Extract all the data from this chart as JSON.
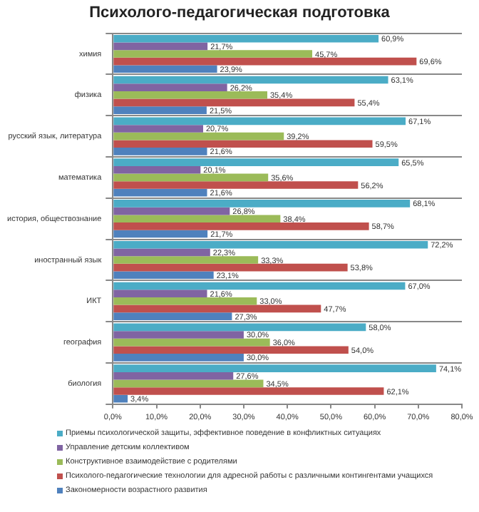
{
  "chart_data": {
    "type": "bar",
    "orientation": "horizontal",
    "title": "Психолого-педагогическая подготовка",
    "categories": [
      "химия",
      "физика",
      "русский язык, литература",
      "математика",
      "история, обществознание",
      "иностранный язык",
      "ИКТ",
      "география",
      "биология"
    ],
    "series": [
      {
        "name": "Приемы психологической защиты, эффективное поведение в конфликтных ситуациях",
        "color": "#4bacc6",
        "values": [
          60.9,
          63.1,
          67.1,
          65.5,
          68.1,
          72.2,
          67.0,
          58.0,
          74.1
        ],
        "value_labels": [
          "60,9%",
          "63,1%",
          "67,1%",
          "65,5%",
          "68,1%",
          "72,2%",
          "67,0%",
          "58,0%",
          "74,1%"
        ]
      },
      {
        "name": "Управление детским коллективом",
        "color": "#8064a2",
        "values": [
          21.7,
          26.2,
          20.7,
          20.1,
          26.8,
          22.3,
          21.6,
          30.0,
          27.6
        ],
        "value_labels": [
          "21,7%",
          "26,2%",
          "20,7%",
          "20,1%",
          "26,8%",
          "22,3%",
          "21,6%",
          "30,0%",
          "27,6%"
        ]
      },
      {
        "name": "Конструктивное взаимодействие с родителями",
        "color": "#9bbb59",
        "values": [
          45.7,
          35.4,
          39.2,
          35.6,
          38.4,
          33.3,
          33.0,
          36.0,
          34.5
        ],
        "value_labels": [
          "45,7%",
          "35,4%",
          "39,2%",
          "35,6%",
          "38,4%",
          "33,3%",
          "33,0%",
          "36,0%",
          "34,5%"
        ]
      },
      {
        "name": "Психолого-педагогические технологии для адресной работы с различными контингентами учащихся",
        "color": "#c0504d",
        "values": [
          69.6,
          55.4,
          59.5,
          56.2,
          58.7,
          53.8,
          47.7,
          54.0,
          62.1
        ],
        "value_labels": [
          "69,6%",
          "55,4%",
          "59,5%",
          "56,2%",
          "58,7%",
          "53,8%",
          "47,7%",
          "54,0%",
          "62,1%"
        ]
      },
      {
        "name": "Закономерности возрастного развития",
        "color": "#4f81bd",
        "values": [
          23.9,
          21.5,
          21.6,
          21.6,
          21.7,
          23.1,
          27.3,
          30.0,
          3.4
        ],
        "value_labels": [
          "23,9%",
          "21,5%",
          "21,6%",
          "21,6%",
          "21,7%",
          "23,1%",
          "27,3%",
          "30,0%",
          "3,4%"
        ]
      }
    ],
    "xlim": [
      0,
      80
    ],
    "xticks": [
      {
        "value": 0,
        "label": "0,0%"
      },
      {
        "value": 10,
        "label": "10,0%"
      },
      {
        "value": 20,
        "label": "20,0%"
      },
      {
        "value": 30,
        "label": "30,0%"
      },
      {
        "value": 40,
        "label": "40,0%"
      },
      {
        "value": 50,
        "label": "50,0%"
      },
      {
        "value": 60,
        "label": "60,0%"
      },
      {
        "value": 70,
        "label": "70,0%"
      },
      {
        "value": 80,
        "label": "80,0%"
      }
    ],
    "grid": "y",
    "legend": "bottom"
  }
}
